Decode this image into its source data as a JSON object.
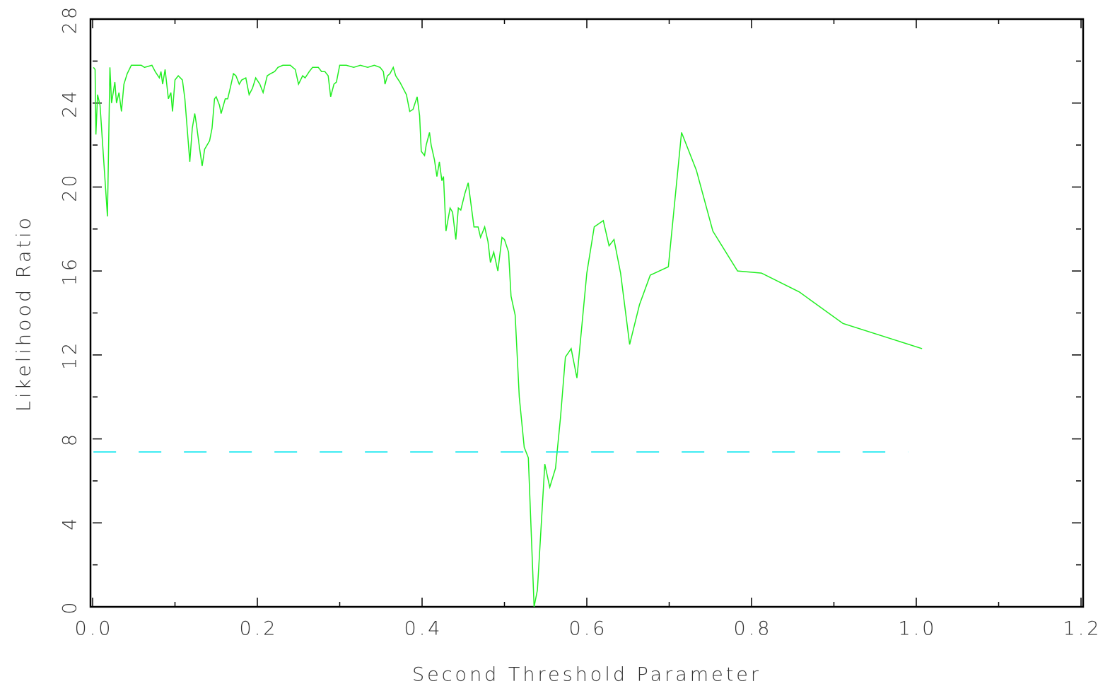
{
  "chart_data": {
    "type": "line",
    "x_label": "Second Threshold Parameter",
    "y_label": "Likelihood Ratio",
    "xlim": [
      0,
      1.2
    ],
    "ylim": [
      0,
      28
    ],
    "xticks": [
      {
        "value": 0,
        "label": "0.0"
      },
      0.2,
      0.4,
      0.6,
      0.8,
      {
        "value": 1,
        "label": "1.0"
      },
      1.2
    ],
    "yticks": [
      0,
      4,
      8,
      12,
      16,
      20,
      24,
      28
    ],
    "xminor_ticks": [
      0.1,
      0.3,
      0.5,
      0.7,
      0.9,
      1.1
    ],
    "yminor_ticks": [
      2,
      6,
      10,
      14,
      18,
      22,
      26
    ],
    "series": [
      {
        "color": "#22ee22",
        "style": "solid",
        "x": [
          0.001,
          0.003,
          0.004,
          0.006,
          0.009,
          0.018,
          0.021,
          0.023,
          0.027,
          0.029,
          0.032,
          0.035,
          0.038,
          0.042,
          0.047,
          0.059,
          0.063,
          0.072,
          0.076,
          0.081,
          0.083,
          0.085,
          0.088,
          0.092,
          0.095,
          0.097,
          0.1,
          0.104,
          0.109,
          0.112,
          0.116,
          0.118,
          0.121,
          0.124,
          0.126,
          0.13,
          0.133,
          0.136,
          0.142,
          0.145,
          0.148,
          0.15,
          0.154,
          0.156,
          0.161,
          0.164,
          0.167,
          0.171,
          0.174,
          0.178,
          0.181,
          0.186,
          0.19,
          0.194,
          0.198,
          0.203,
          0.207,
          0.212,
          0.216,
          0.221,
          0.225,
          0.231,
          0.24,
          0.246,
          0.25,
          0.255,
          0.258,
          0.263,
          0.267,
          0.274,
          0.278,
          0.282,
          0.286,
          0.289,
          0.293,
          0.296,
          0.3,
          0.308,
          0.317,
          0.325,
          0.334,
          0.342,
          0.349,
          0.353,
          0.355,
          0.358,
          0.361,
          0.365,
          0.368,
          0.373,
          0.377,
          0.381,
          0.385,
          0.389,
          0.394,
          0.397,
          0.399,
          0.403,
          0.405,
          0.409,
          0.411,
          0.415,
          0.418,
          0.421,
          0.424,
          0.426,
          0.429,
          0.434,
          0.437,
          0.441,
          0.444,
          0.447,
          0.452,
          0.456,
          0.463,
          0.468,
          0.471,
          0.476,
          0.48,
          0.483,
          0.487,
          0.492,
          0.497,
          0.5,
          0.505,
          0.508,
          0.513,
          0.518,
          0.524,
          0.529,
          0.536,
          0.54,
          0.549,
          0.555,
          0.562,
          0.568,
          0.574,
          0.581,
          0.588,
          0.6,
          0.609,
          0.62,
          0.627,
          0.633,
          0.641,
          0.652,
          0.664,
          0.677,
          0.699,
          0.715,
          0.733,
          0.753,
          0.783,
          0.812,
          0.858,
          0.911,
          1.007
        ],
        "values": [
          25.7,
          25.6,
          22.5,
          24.4,
          23.9,
          18.6,
          25.7,
          24.0,
          25.0,
          24.0,
          24.5,
          23.6,
          24.9,
          25.4,
          25.8,
          25.8,
          25.7,
          25.8,
          25.5,
          25.2,
          25.5,
          24.9,
          25.6,
          24.2,
          24.5,
          23.6,
          25.1,
          25.3,
          25.1,
          24.2,
          22.2,
          21.2,
          22.8,
          23.5,
          23.0,
          21.8,
          21.0,
          21.8,
          22.2,
          22.8,
          24.2,
          24.3,
          23.9,
          23.5,
          24.2,
          24.2,
          24.7,
          25.4,
          25.3,
          24.9,
          25.1,
          25.2,
          24.4,
          24.7,
          25.2,
          24.9,
          24.5,
          25.3,
          25.4,
          25.5,
          25.7,
          25.8,
          25.8,
          25.6,
          24.9,
          25.3,
          25.2,
          25.5,
          25.7,
          25.7,
          25.5,
          25.5,
          25.3,
          24.3,
          24.9,
          25.0,
          25.8,
          25.8,
          25.7,
          25.8,
          25.7,
          25.8,
          25.7,
          25.5,
          24.9,
          25.3,
          25.4,
          25.7,
          25.3,
          25.0,
          24.7,
          24.4,
          23.6,
          23.7,
          24.3,
          23.4,
          21.7,
          21.5,
          22.0,
          22.6,
          22.0,
          21.3,
          20.5,
          21.2,
          20.3,
          20.5,
          17.9,
          19.0,
          18.8,
          17.5,
          19.0,
          18.9,
          19.7,
          20.2,
          18.1,
          18.1,
          17.6,
          18.1,
          17.4,
          16.4,
          16.9,
          16.0,
          17.6,
          17.5,
          16.9,
          14.8,
          13.9,
          10.0,
          7.6,
          7.1,
          0.0,
          0.8,
          6.8,
          5.7,
          6.6,
          9.0,
          11.9,
          12.3,
          10.9,
          15.9,
          18.1,
          18.4,
          17.2,
          17.5,
          15.9,
          12.5,
          14.4,
          15.8,
          16.2,
          22.6,
          20.8,
          17.9,
          16.0,
          15.9,
          15.0,
          13.5,
          12.3
        ]
      },
      {
        "color": "#00e5ee",
        "style": "dashed",
        "x": [
          0.001,
          0.99
        ],
        "values": [
          7.38,
          7.38
        ]
      }
    ]
  }
}
